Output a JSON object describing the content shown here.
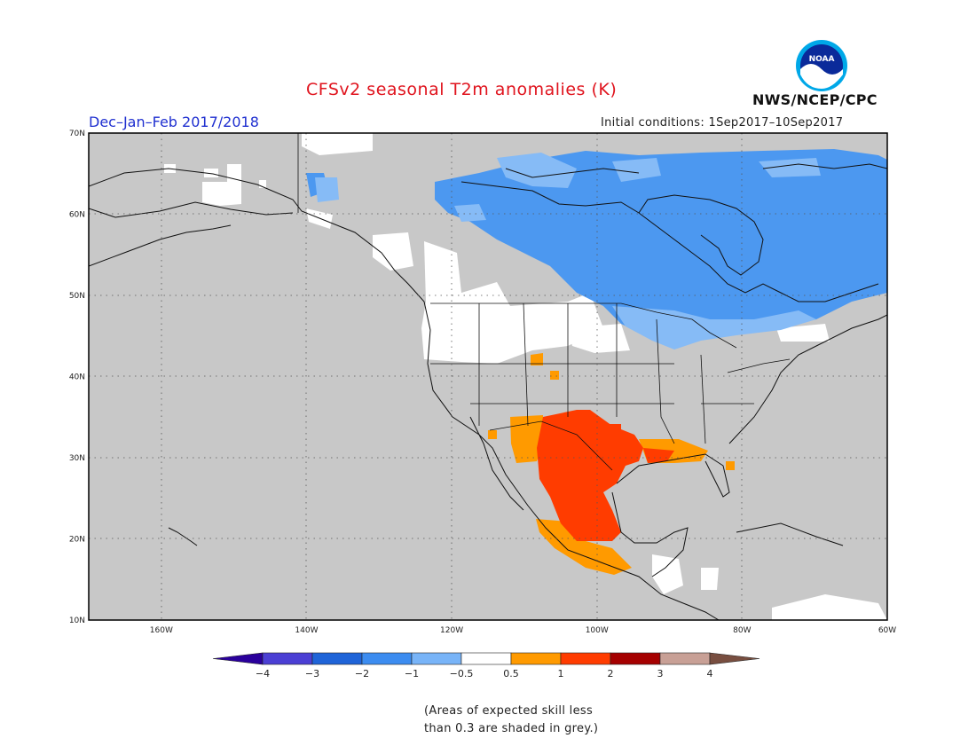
{
  "title": "CFSv2 seasonal T2m anomalies (K)",
  "season": "Dec–Jan–Feb 2017/2018",
  "initial_conditions": "Initial conditions: 1Sep2017–10Sep2017",
  "agency": "NWS/NCEP/CPC",
  "logo_text": "NOAA",
  "map": {
    "lon_range": [
      -170,
      -60
    ],
    "lat_range": [
      10,
      70
    ],
    "lat_labels": [
      "70N",
      "60N",
      "50N",
      "40N",
      "30N",
      "20N",
      "10N"
    ],
    "lon_labels": [
      "160W",
      "140W",
      "120W",
      "100W",
      "80W",
      "60W"
    ]
  },
  "colorbar": {
    "labels": [
      "−4",
      "−3",
      "−2",
      "−1",
      "−0.5",
      "0.5",
      "1",
      "2",
      "3",
      "4"
    ],
    "colors": [
      "#2a009c",
      "#4b3fd4",
      "#1f64d8",
      "#3c8cf0",
      "#78b4f8",
      "#ffffff",
      "#ff9a00",
      "#ff3c00",
      "#a50000",
      "#c8a096",
      "#784e40"
    ]
  },
  "skill_note": [
    "(Areas of expected skill less",
    "than 0.3 are shaded in grey.)"
  ],
  "colors": {
    "mask_grey": "#c8c8c8",
    "cool": "#4c98f0",
    "cool_light": "#86bbf6",
    "warm": "#ff3c00",
    "warm_light": "#ff9a00"
  }
}
